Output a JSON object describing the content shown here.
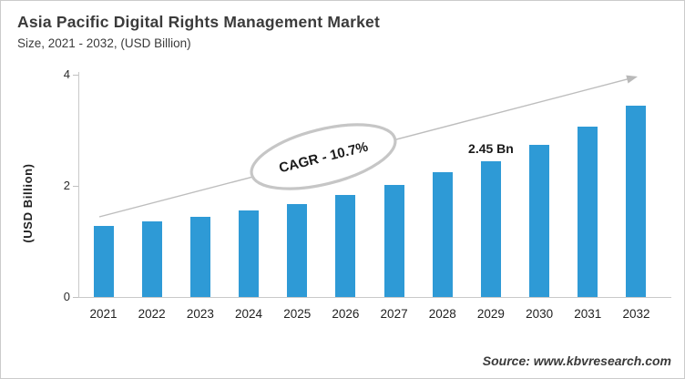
{
  "chart_data": {
    "type": "bar",
    "title": "Asia Pacific Digital Rights Management Market",
    "subtitle": "Size, 2021 - 2032, (USD Billion)",
    "ylabel": "(USD Billion)",
    "categories": [
      "2021",
      "2022",
      "2023",
      "2024",
      "2025",
      "2026",
      "2027",
      "2028",
      "2029",
      "2030",
      "2031",
      "2032"
    ],
    "values": [
      1.28,
      1.36,
      1.44,
      1.56,
      1.67,
      1.84,
      2.02,
      2.25,
      2.45,
      2.74,
      3.06,
      3.45
    ],
    "ylim": [
      0,
      4
    ],
    "yticks": [
      0,
      2,
      4
    ],
    "grid": false,
    "bar_color": "#2E9AD6",
    "annotations": {
      "cagr_label": "CAGR - 10.7%",
      "value_label": {
        "text": "2.45 Bn",
        "category": "2029"
      },
      "trend_arrow": true
    },
    "source": "Source: www.kbvresearch.com"
  }
}
